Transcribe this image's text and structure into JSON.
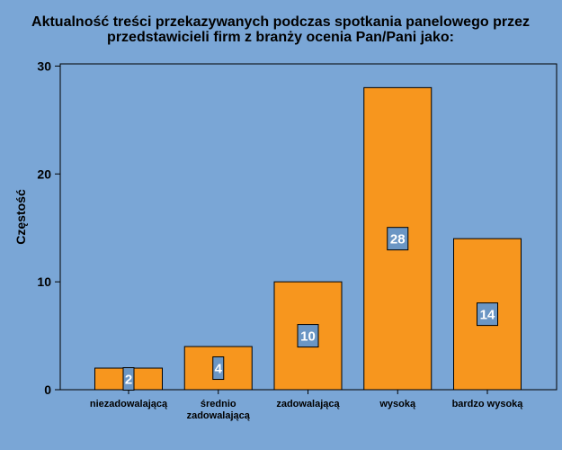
{
  "chart_data": {
    "type": "bar",
    "title_lines": [
      "Aktualność treści przekazywanych podczas spotkania panelowego przez",
      "przedstawicieli firm z branży ocenia Pan/Pani jako:"
    ],
    "ylabel": "Częstość",
    "xlabel": "",
    "categories": [
      [
        "niezadowalającą"
      ],
      [
        "średnio",
        "zadowalającą"
      ],
      [
        "zadowalającą"
      ],
      [
        "wysoką"
      ],
      [
        "bardzo wysoką"
      ]
    ],
    "values": [
      2,
      4,
      10,
      28,
      14
    ],
    "data_labels": [
      "2",
      "4",
      "10",
      "28",
      "14"
    ],
    "yticks": [
      0,
      10,
      20,
      30
    ],
    "ytick_labels": [
      "0",
      "10",
      "20",
      "30"
    ],
    "ylim": [
      0,
      30.2
    ],
    "grid": false,
    "colors": {
      "background": "#7aa6d6",
      "bar_fill": "#f7961e",
      "bar_stroke": "#000000",
      "label_box": "#6b96c4"
    }
  }
}
